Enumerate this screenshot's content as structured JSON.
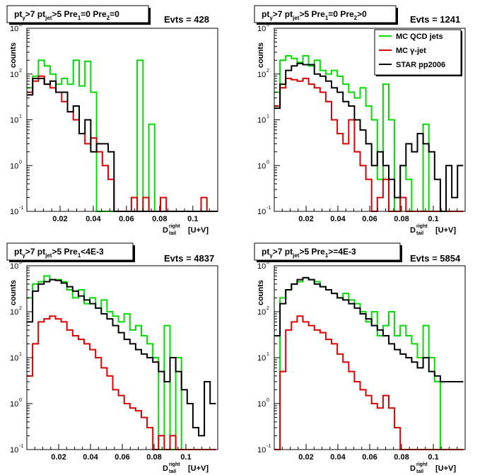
{
  "figure": {
    "xlabel_main": "D",
    "xlabel_sup": "right",
    "xlabel_sub": "tail",
    "xlabel_suffix": "[U+V]",
    "ylabel": "counts"
  },
  "legend": {
    "entries": [
      {
        "label": "MC QCD jets",
        "color": "#00dd00"
      },
      {
        "label": "MC γ-jet",
        "color": "#dd0000"
      },
      {
        "label": "STAR pp2006",
        "color": "#000000"
      }
    ]
  },
  "chart_data": [
    {
      "type": "line",
      "title_parts": [
        "pt",
        "γ",
        ">7  pt",
        "jet",
        ">5 Pre",
        "1",
        "=0 Pre",
        "2",
        "=0"
      ],
      "evts": "Evts = 428",
      "xlim": [
        0,
        0.115
      ],
      "ylim": [
        0.1,
        1000
      ],
      "yscale": "log",
      "xticks": [
        "0.02",
        "0.04",
        "0.06",
        "0.08",
        "0.1"
      ],
      "xtick_values": [
        0.02,
        0.04,
        0.06,
        0.08,
        0.1
      ],
      "binwidth": 0.0035,
      "series": [
        {
          "name": "MC QCD jets",
          "color": "#00dd00",
          "values": [
            50,
            90,
            200,
            150,
            100,
            60,
            80,
            60,
            200,
            55,
            190,
            40,
            0.1,
            0.1,
            0.1,
            0.1,
            0.1,
            0.1,
            0.1,
            200,
            0.1,
            8,
            0.1,
            0.1,
            0.1,
            0.1,
            0.1,
            0.1,
            0.1,
            0.1,
            0.1,
            0.1,
            0.1
          ]
        },
        {
          "name": "MC γ-jet",
          "color": "#dd0000",
          "values": [
            40,
            70,
            90,
            60,
            50,
            40,
            25,
            15,
            10,
            5,
            3,
            4,
            2,
            1,
            0.5,
            0.1,
            0.1,
            0.1,
            0.2,
            0.1,
            0.2,
            0.1,
            0.1,
            0.2,
            0.1,
            0.1,
            0.1,
            0.1,
            0.1,
            0.1,
            0.2,
            0.1,
            0.1
          ]
        },
        {
          "name": "STAR pp2006",
          "color": "#000000",
          "values": [
            35,
            80,
            80,
            60,
            70,
            40,
            40,
            15,
            20,
            5,
            10,
            2,
            3,
            3,
            2,
            0.1,
            0.1,
            0.1,
            0.1,
            0.1,
            0.1,
            0.1,
            0.1,
            0.1,
            0.1,
            0.1,
            0.1,
            0.1,
            0.1,
            0.1,
            0.1,
            0.1,
            0.1
          ]
        }
      ]
    },
    {
      "type": "line",
      "title_parts": [
        "pt",
        "γ",
        ">7  pt",
        "jet",
        ">5 Pre",
        "1",
        "=0 Pre",
        "2",
        ">0"
      ],
      "evts": "Evts = 1241",
      "xlim": [
        0,
        0.12
      ],
      "ylim": [
        0.1,
        1000
      ],
      "yscale": "log",
      "xticks": [
        "0.02",
        "0.04",
        "0.06",
        "0.08",
        "0.1"
      ],
      "xtick_values": [
        0.02,
        0.04,
        0.06,
        0.08,
        0.1
      ],
      "binwidth": 0.0036,
      "show_legend": true,
      "series": [
        {
          "name": "MC QCD jets",
          "color": "#00dd00",
          "values": [
            40,
            200,
            250,
            220,
            180,
            250,
            150,
            200,
            120,
            100,
            120,
            90,
            60,
            40,
            30,
            50,
            20,
            10,
            0.5,
            60,
            10,
            0.1,
            1,
            0.5,
            0.1,
            0.1,
            8,
            0.1,
            0.1,
            0.1,
            0.1,
            0.1,
            0.1
          ]
        },
        {
          "name": "MC γ-jet",
          "color": "#dd0000",
          "values": [
            20,
            50,
            80,
            75,
            70,
            80,
            60,
            50,
            40,
            25,
            10,
            5,
            3,
            10,
            2,
            1,
            0.5,
            0.1,
            0.2,
            0.5,
            0.1,
            0.1,
            0.2,
            0.1,
            0.1,
            0.1,
            0.1,
            0.1,
            0.1,
            0.1,
            0.1,
            0.1,
            0.1
          ]
        },
        {
          "name": "STAR pp2006",
          "color": "#000000",
          "values": [
            18,
            60,
            120,
            150,
            170,
            160,
            160,
            100,
            90,
            70,
            50,
            40,
            25,
            20,
            10,
            6,
            3,
            1,
            2,
            1,
            0.5,
            0.2,
            1,
            3,
            2,
            5,
            3,
            2,
            0.5,
            0.1,
            1,
            0.2,
            1
          ]
        }
      ]
    },
    {
      "type": "line",
      "title_parts": [
        "pt",
        "γ",
        ">7  pt",
        "jet",
        ">5 Pre",
        "1",
        "<4E-3",
        "",
        ""
      ],
      "evts": "Evts = 4837",
      "xlim": [
        0,
        0.12
      ],
      "ylim": [
        0.1,
        1000
      ],
      "yscale": "log",
      "xticks": [
        "0.02",
        "0.04",
        "0.06",
        "0.08",
        "0.1"
      ],
      "xtick_values": [
        0.02,
        0.04,
        0.06,
        0.08,
        0.1
      ],
      "binwidth": 0.0036,
      "series": [
        {
          "name": "MC QCD jets",
          "color": "#00dd00",
          "values": [
            200,
            400,
            450,
            600,
            500,
            500,
            450,
            300,
            200,
            300,
            150,
            200,
            120,
            180,
            100,
            80,
            60,
            90,
            40,
            50,
            30,
            20,
            10,
            0.1,
            50,
            0.1,
            10,
            0.1,
            0.1,
            0.1,
            0.1,
            0.1,
            0.1
          ]
        },
        {
          "name": "MC γ-jet",
          "color": "#dd0000",
          "values": [
            4,
            20,
            60,
            70,
            80,
            70,
            60,
            40,
            30,
            25,
            20,
            15,
            10,
            6,
            4,
            2,
            1.5,
            1,
            0.8,
            0.7,
            0.5,
            0.3,
            0.1,
            0.2,
            0.1,
            0.2,
            0.1,
            0.1,
            0.1,
            0.1,
            0.1,
            0.1,
            0.1
          ]
        },
        {
          "name": "STAR pp2006",
          "color": "#000000",
          "values": [
            60,
            280,
            400,
            450,
            500,
            480,
            420,
            350,
            280,
            220,
            180,
            150,
            120,
            90,
            70,
            50,
            35,
            25,
            20,
            15,
            12,
            10,
            8,
            5,
            3,
            10,
            5,
            2,
            1,
            0.3,
            0.2,
            3,
            1
          ]
        }
      ]
    },
    {
      "type": "line",
      "title_parts": [
        "pt",
        "γ",
        ">7  pt",
        "jet",
        ">5 Pre",
        "1",
        ">=4E-3",
        "",
        ""
      ],
      "evts": "Evts = 5854",
      "xlim": [
        0,
        0.12
      ],
      "ylim": [
        0.1,
        1000
      ],
      "yscale": "log",
      "xticks": [
        "0.02",
        "0.04",
        "0.06",
        "0.08",
        "0.1"
      ],
      "xtick_values": [
        0.02,
        0.04,
        0.06,
        0.08,
        0.1
      ],
      "binwidth": 0.0036,
      "series": [
        {
          "name": "MC QCD jets",
          "color": "#00dd00",
          "values": [
            0.1,
            200,
            300,
            400,
            450,
            550,
            500,
            450,
            350,
            300,
            250,
            200,
            250,
            180,
            150,
            100,
            60,
            100,
            30,
            50,
            100,
            30,
            50,
            30,
            20,
            10,
            50,
            10,
            3,
            0.1,
            0.1,
            0.1,
            0.1
          ]
        },
        {
          "name": "MC γ-jet",
          "color": "#dd0000",
          "values": [
            0.1,
            5,
            40,
            60,
            80,
            60,
            50,
            40,
            35,
            25,
            20,
            12,
            8,
            5,
            3,
            2,
            1.5,
            1,
            0.8,
            1.5,
            0.8,
            0.3,
            0.1,
            0.1,
            0.1,
            0.1,
            0.1,
            0.1,
            0.1,
            0.1,
            0.1,
            0.1,
            0.1
          ]
        },
        {
          "name": "STAR pp2006",
          "color": "#000000",
          "values": [
            30,
            150,
            300,
            400,
            500,
            550,
            500,
            400,
            350,
            300,
            250,
            200,
            180,
            150,
            120,
            90,
            70,
            50,
            40,
            30,
            20,
            15,
            12,
            10,
            8,
            6,
            10,
            5,
            4,
            3,
            3,
            3,
            3
          ]
        }
      ]
    }
  ]
}
